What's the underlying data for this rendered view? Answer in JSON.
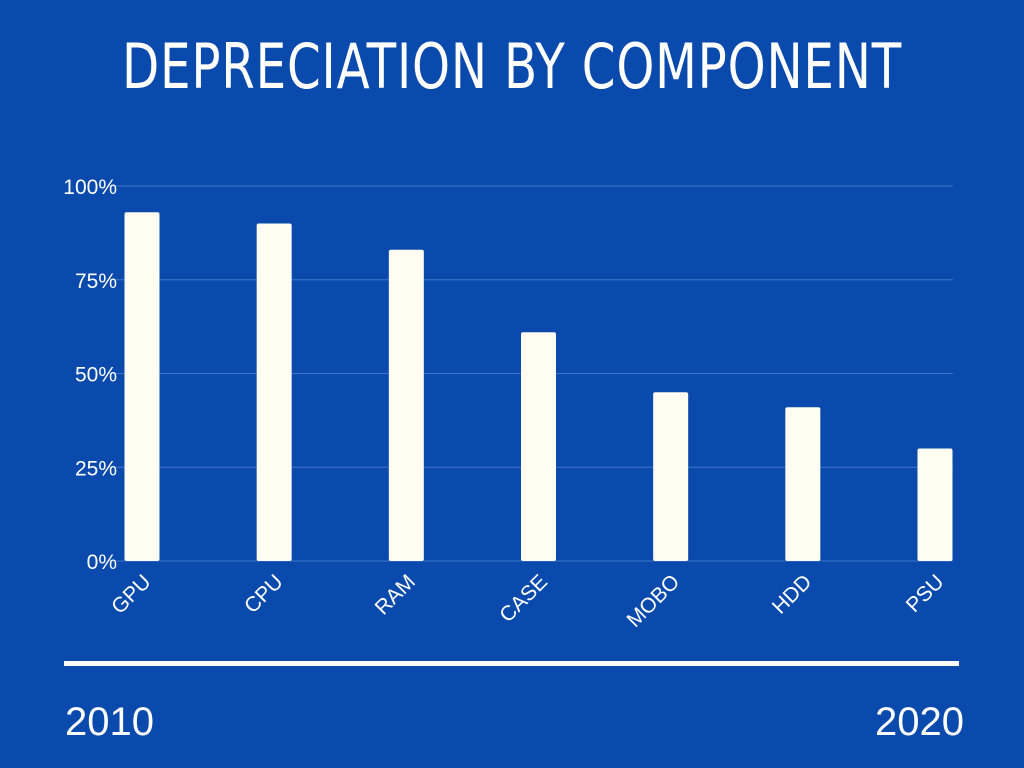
{
  "chart_data": {
    "type": "bar",
    "title": "DEPRECIATION BY COMPONENT",
    "categories": [
      "GPU",
      "CPU",
      "RAM",
      "CASE",
      "MOBO",
      "HDD",
      "PSU"
    ],
    "values": [
      93,
      90,
      83,
      61,
      45,
      41,
      30
    ],
    "ylim": [
      0,
      100
    ],
    "yticks": [
      0,
      25,
      50,
      75,
      100
    ],
    "ytick_labels": [
      "0%",
      "25%",
      "50%",
      "75%",
      "100%"
    ],
    "xlabel": "",
    "ylabel": "",
    "grid": true,
    "legend": "none",
    "colors": {
      "background": "#0a4aad",
      "bar": "#fffdf2",
      "grid": "#3f74c6",
      "text": "#ffffff"
    }
  },
  "timeline": {
    "start_label": "2010",
    "end_label": "2020"
  }
}
